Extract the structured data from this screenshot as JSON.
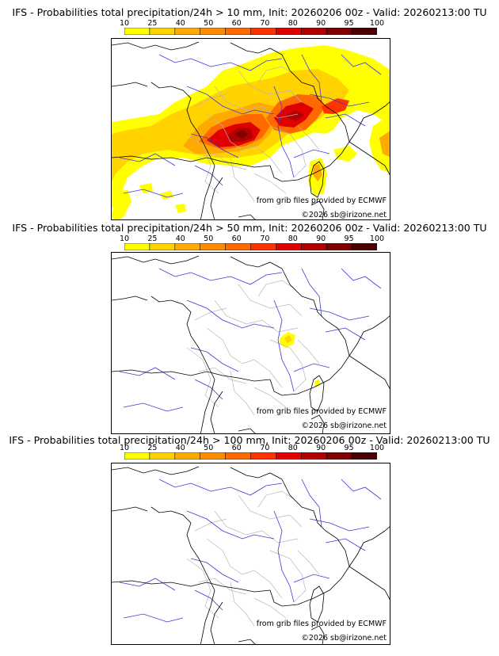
{
  "legend": {
    "ticks": [
      "10",
      "25",
      "40",
      "50",
      "60",
      "70",
      "80",
      "90",
      "95",
      "100"
    ],
    "colors": [
      "#ffff00",
      "#ffd200",
      "#ffaa00",
      "#ff8c00",
      "#ff6a00",
      "#ff3300",
      "#e00000",
      "#b00000",
      "#800000",
      "#4a0000"
    ]
  },
  "panels": [
    {
      "title": "IFS - Probabilities total precipitation/24h > 10 mm, Init: 20260206 00z - Valid: 20260213:00 TU"
    },
    {
      "title": "IFS - Probabilities total precipitation/24h > 50 mm, Init: 20260206 00z - Valid: 20260213:00 TU"
    },
    {
      "title": "IFS - Probabilities total precipitation/24h > 100 mm, Init: 20260206 00z - Valid: 20260213:00 TU"
    }
  ],
  "credits": {
    "source": "from grib files provided by ECMWF",
    "copyright": "©2026 sb@irizone.net"
  },
  "map_colors": {
    "coast": "#000000",
    "rivers": "#3333dd",
    "regions": "#b0b0b0"
  }
}
